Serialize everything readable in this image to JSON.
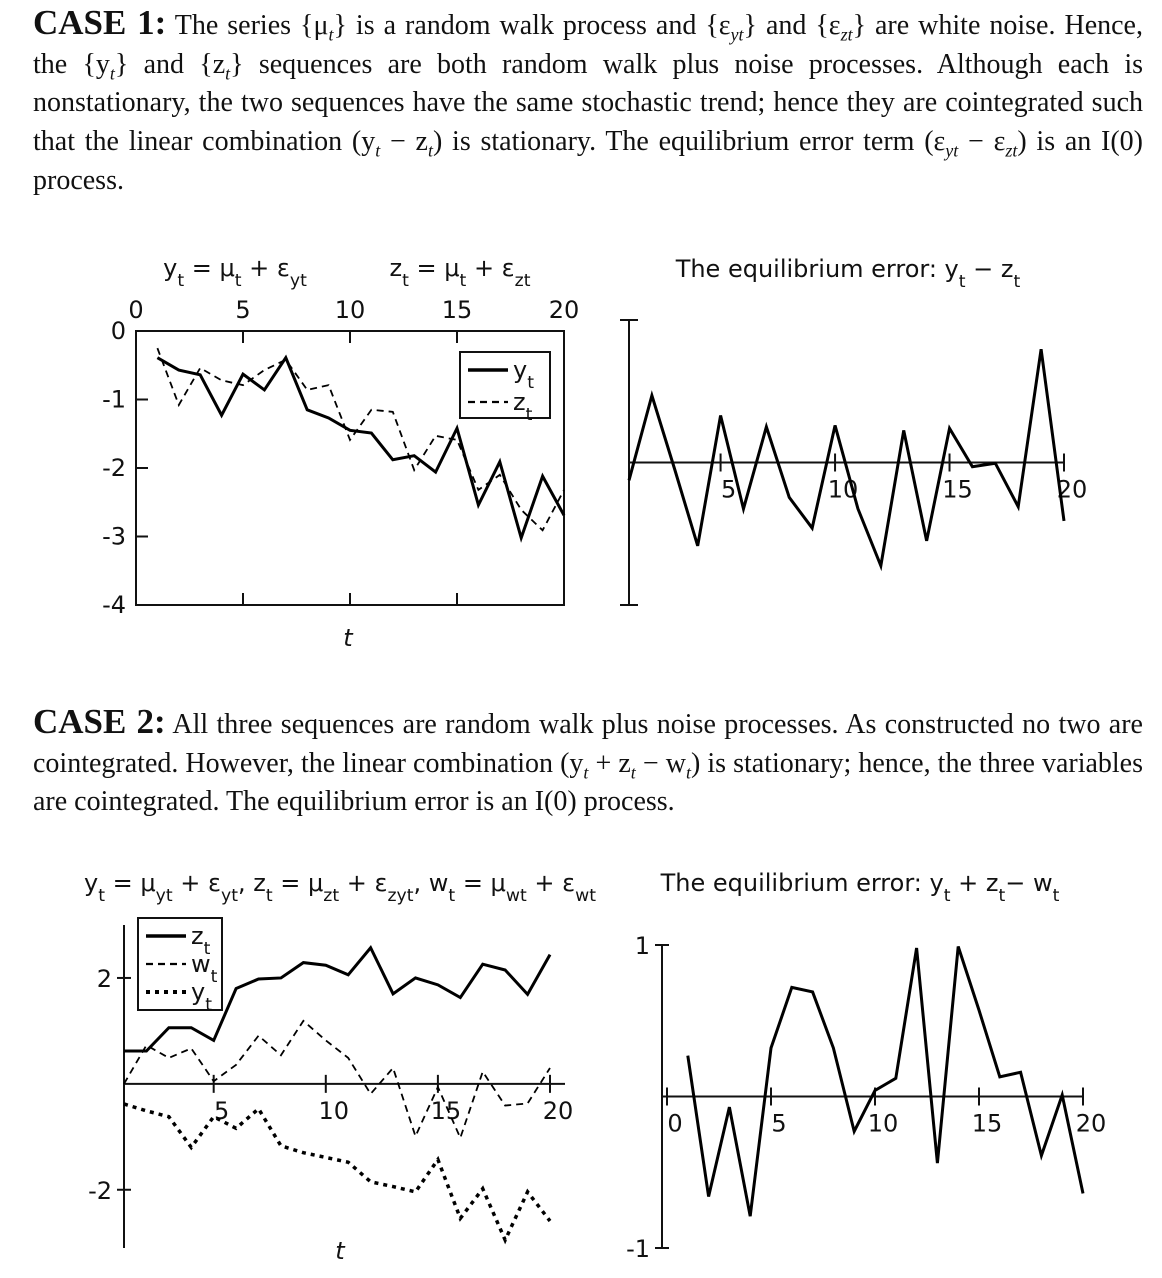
{
  "case1": {
    "heading": "CASE 1:",
    "body": [
      "The series {μ",
      "t",
      "} is a random walk process and {ε",
      "yt",
      "} and {ε",
      "zt",
      "} are white noise. Hence, the {y",
      "t",
      "} and {z",
      "t",
      "} sequences are both random walk plus noise processes. Although each is nonstationary, the two sequences have the same stochastic trend; hence they are cointegrated such that the linear combination (y",
      "t",
      " − z",
      "t",
      ") is stationary. The equilibrium error term (ε",
      "yt",
      " − ε",
      "zt",
      ") is an I(0) process."
    ]
  },
  "case2": {
    "heading": "CASE 2:",
    "body": [
      "All three sequences are random walk plus noise processes. As constructed no two are cointegrated. However, the linear combination (y",
      "t",
      " + z",
      "t",
      " − w",
      "t",
      ") is stationary; hence, the three variables are cointegrated. The equilibrium error is an I(0) process."
    ]
  },
  "chart_data": [
    {
      "type": "line",
      "titles": [
        [
          "y",
          "t",
          " = μ",
          "t",
          " + ε",
          "yt"
        ],
        [
          "z",
          "t",
          " = μ",
          "t",
          " + ε",
          "zt"
        ]
      ],
      "xlabel": "t",
      "x": [
        1,
        2,
        3,
        4,
        5,
        6,
        7,
        8,
        9,
        10,
        11,
        12,
        13,
        14,
        15,
        16,
        17,
        18,
        19,
        20
      ],
      "series": [
        {
          "name": [
            "y",
            "t"
          ],
          "color": "#000",
          "style": "solid",
          "values": [
            -0.39,
            -0.57,
            -0.64,
            -1.23,
            -0.63,
            -0.86,
            -0.39,
            -1.15,
            -1.27,
            -1.45,
            -1.49,
            -1.88,
            -1.82,
            -2.06,
            -1.42,
            -2.54,
            -1.91,
            -3.02,
            -2.12,
            -2.69
          ]
        },
        {
          "name": [
            "z",
            "t"
          ],
          "color": "#000",
          "style": "dashed",
          "values": [
            -0.25,
            -1.08,
            -0.54,
            -0.72,
            -0.79,
            -0.57,
            -0.42,
            -0.86,
            -0.79,
            -1.59,
            -1.15,
            -1.18,
            -2.03,
            -1.53,
            -1.59,
            -2.32,
            -2.1,
            -2.61,
            -2.91,
            -2.32
          ]
        }
      ],
      "xlim": [
        0,
        20
      ],
      "ylim": [
        -4,
        0
      ],
      "xticks": [
        0,
        5,
        10,
        15,
        20
      ],
      "yticks": [
        0,
        -1,
        -2,
        -3,
        -4
      ],
      "legend": "upper right"
    },
    {
      "type": "line",
      "titles": [
        [
          "The equilibrium error: y",
          "t",
          " − z",
          "t"
        ]
      ],
      "x": [
        1,
        2,
        3,
        4,
        5,
        6,
        7,
        8,
        9,
        10,
        11,
        12,
        13,
        14,
        15,
        16,
        17,
        18,
        19,
        20
      ],
      "series": [
        {
          "name": [
            "y",
            "t",
            " − z",
            "t"
          ],
          "color": "#000",
          "style": "solid",
          "values": [
            -0.25,
            0.94,
            -0.1,
            -1.17,
            0.66,
            -0.65,
            0.5,
            -0.49,
            -0.92,
            0.52,
            -0.65,
            -1.45,
            0.45,
            -1.1,
            0.48,
            -0.06,
            -0.01,
            -0.62,
            1.59,
            -0.82
          ]
        }
      ],
      "xlim": [
        1,
        20
      ],
      "ylim": [
        -2,
        2
      ],
      "xticks": [
        5,
        10,
        15,
        20
      ]
    },
    {
      "type": "line",
      "titles": [
        [
          "y",
          "t",
          " = μ",
          "yt",
          " + ε",
          "yt",
          ", z",
          "t",
          " = μ",
          "zt",
          " + ε",
          "zyt",
          ", w",
          "t",
          " = μ",
          "wt",
          " + ε",
          "wt"
        ]
      ],
      "xlabel": "t",
      "x": [
        1,
        2,
        3,
        4,
        5,
        6,
        7,
        8,
        9,
        10,
        11,
        12,
        13,
        14,
        15,
        16,
        17,
        18,
        19,
        20
      ],
      "series": [
        {
          "name": [
            "z",
            "t"
          ],
          "color": "#000",
          "style": "solid",
          "values": [
            0.62,
            0.62,
            1.06,
            1.06,
            0.82,
            1.8,
            1.98,
            2.0,
            2.29,
            2.24,
            2.06,
            2.57,
            1.7,
            2.0,
            1.87,
            1.63,
            2.26,
            2.15,
            1.69,
            2.44
          ]
        },
        {
          "name": [
            "w",
            "t"
          ],
          "color": "#000",
          "style": "dashed",
          "values": [
            0,
            0.73,
            0.49,
            0.67,
            0.05,
            0.36,
            0.91,
            0.54,
            1.19,
            0.82,
            0.49,
            -0.19,
            0.3,
            -0.99,
            -0.06,
            -1.02,
            0.23,
            -0.41,
            -0.37,
            0.3
          ]
        },
        {
          "name": [
            "y",
            "t"
          ],
          "color": "#000",
          "style": "dotted",
          "values": [
            -0.38,
            -0.51,
            -0.62,
            -1.2,
            -0.62,
            -0.84,
            -0.47,
            -1.17,
            -1.3,
            -1.39,
            -1.48,
            -1.85,
            -1.94,
            -2.04,
            -1.43,
            -2.54,
            -1.98,
            -2.95,
            -2.04,
            -2.59
          ]
        }
      ],
      "xlim": [
        1,
        20
      ],
      "ylim": [
        -3.1,
        3
      ],
      "xticks": [
        5,
        10,
        15,
        20
      ],
      "yticks": [
        2,
        -2
      ],
      "legend": "upper left"
    },
    {
      "type": "line",
      "titles": [
        [
          "The equilibrium error: y",
          "t",
          " + z",
          "t",
          "− w",
          "t"
        ]
      ],
      "x": [
        1,
        2,
        3,
        4,
        5,
        6,
        7,
        8,
        9,
        10,
        11,
        12,
        13,
        14,
        15,
        16,
        17,
        18,
        19,
        20
      ],
      "series": [
        {
          "name": [
            "y",
            "t",
            " + z",
            "t",
            "− w",
            "t"
          ],
          "color": "#000",
          "style": "solid",
          "values": [
            0.27,
            -0.66,
            -0.07,
            -0.79,
            0.32,
            0.72,
            0.69,
            0.32,
            -0.23,
            0.04,
            0.12,
            0.98,
            -0.44,
            0.99,
            0.57,
            0.13,
            0.16,
            -0.39,
            0.01,
            -0.64
          ]
        }
      ],
      "xlim": [
        0,
        20
      ],
      "ylim": [
        -1,
        1
      ],
      "xticks": [
        0,
        5,
        10,
        15,
        20
      ],
      "yticks": [
        1,
        -1
      ]
    }
  ]
}
